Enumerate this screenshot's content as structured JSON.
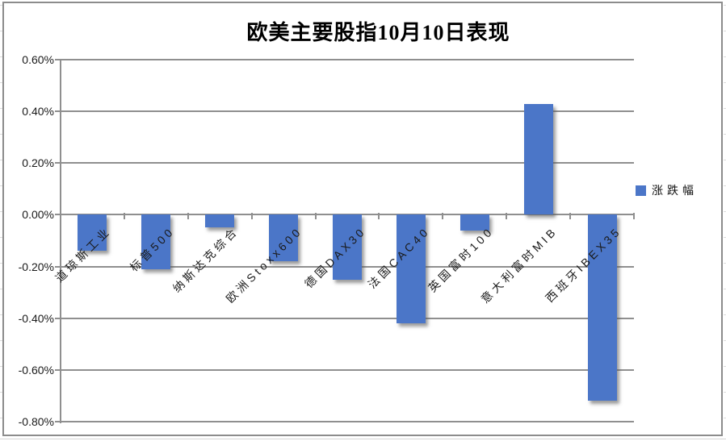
{
  "title": "欧美主要股指10月10日表现",
  "legend": {
    "label": "涨跌幅",
    "color": "#4B76C8"
  },
  "chart_data": {
    "type": "bar",
    "title": "欧美主要股指10月10日表现",
    "categories": [
      "道琼斯工业",
      "标普500",
      "纳斯达克综合",
      "欧洲Stoxx600",
      "德国DAX30",
      "法国CAC40",
      "英国富时100",
      "意大利富时MIB",
      "西班牙IBEX35"
    ],
    "series": [
      {
        "name": "涨跌幅",
        "values": [
          -0.14,
          -0.21,
          -0.05,
          -0.18,
          -0.25,
          -0.42,
          -0.06,
          0.43,
          -0.72
        ]
      }
    ],
    "value_unit": "percent",
    "xlabel": "",
    "ylabel": "",
    "ylim": [
      -0.8,
      0.6
    ],
    "ytick_step": 0.2,
    "ytick_labels": [
      "0.60%",
      "0.40%",
      "0.20%",
      "0.00%",
      "-0.20%",
      "-0.40%",
      "-0.60%",
      "-0.80%"
    ],
    "grid": true,
    "grid_color": "#8f8f8f",
    "bar_color": "#4B76C8",
    "legend_position": "right-middle",
    "category_label_rotation_deg": 45
  }
}
